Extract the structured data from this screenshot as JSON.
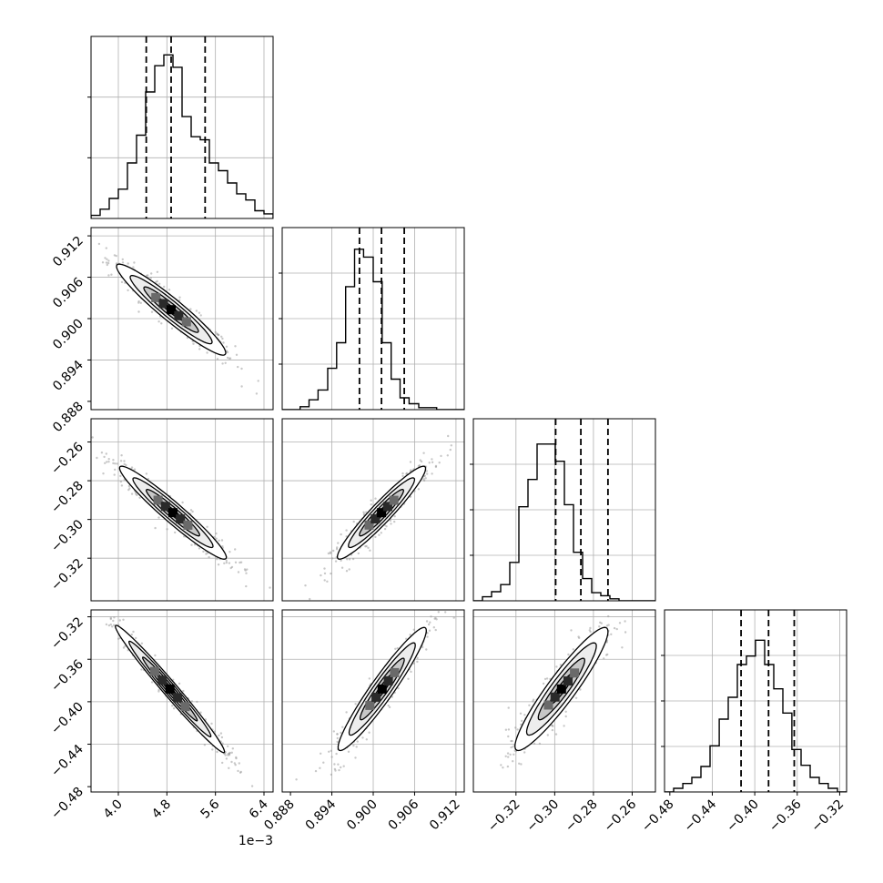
{
  "chart_data": {
    "type": "corner",
    "parameters": [
      {
        "range": [
          3.55,
          6.55
        ],
        "ticks": [
          4.0,
          4.8,
          5.6,
          6.4
        ],
        "tick_labels": [
          "4.0",
          "4.8",
          "5.6",
          "6.4"
        ],
        "offset_label": "1e−3",
        "quantiles": [
          4.46,
          4.87,
          5.43
        ],
        "grid": [
          4.0,
          4.8,
          5.6,
          6.4
        ],
        "hist_grid": [
          1,
          2
        ],
        "hist": {
          "edges": [
            3.55,
            3.7,
            3.85,
            4.0,
            4.15,
            4.3,
            4.45,
            4.6,
            4.75,
            4.9,
            5.05,
            5.2,
            5.35,
            5.5,
            5.65,
            5.8,
            5.95,
            6.1,
            6.25,
            6.4,
            6.55
          ],
          "counts": [
            0.02,
            0.06,
            0.13,
            0.19,
            0.36,
            0.54,
            0.82,
            0.99,
            1.06,
            0.98,
            0.66,
            0.53,
            0.51,
            0.36,
            0.31,
            0.23,
            0.16,
            0.12,
            0.05,
            0.03
          ],
          "max": 1.18
        }
      },
      {
        "range": [
          0.8868,
          0.9132
        ],
        "ticks": [
          0.888,
          0.894,
          0.9,
          0.906,
          0.912
        ],
        "tick_labels": [
          "0.888",
          "0.894",
          "0.900",
          "0.906",
          "0.912"
        ],
        "quantiles": [
          0.898,
          0.9012,
          0.9045
        ],
        "grid": [
          0.894,
          0.9,
          0.906,
          0.912
        ],
        "hist_grid": [
          1,
          2,
          3
        ],
        "hist": {
          "edges": [
            0.8868,
            0.8881,
            0.8894,
            0.8907,
            0.892,
            0.8934,
            0.8947,
            0.896,
            0.8973,
            0.8986,
            0.9,
            0.9013,
            0.9026,
            0.9039,
            0.9052,
            0.9066,
            0.9079,
            0.9092,
            0.9105,
            0.9118,
            0.9132
          ],
          "counts": [
            0.0,
            0.0,
            0.03,
            0.1,
            0.2,
            0.42,
            0.68,
            1.25,
            1.63,
            1.55,
            1.3,
            0.68,
            0.31,
            0.12,
            0.06,
            0.02,
            0.02,
            0.0,
            0.0,
            0.0
          ],
          "max": 1.85
        }
      },
      {
        "range": [
          -0.342,
          -0.248
        ],
        "ticks": [
          -0.32,
          -0.3,
          -0.28,
          -0.26
        ],
        "tick_labels": [
          "−0.32",
          "−0.30",
          "−0.28",
          "−0.26"
        ],
        "quantiles": [
          -0.2995,
          -0.2865,
          -0.2725
        ],
        "grid": [
          -0.32,
          -0.3,
          -0.28,
          -0.26
        ],
        "hist_grid": [
          1,
          2,
          3
        ],
        "hist": {
          "edges": [
            -0.342,
            -0.3373,
            -0.3326,
            -0.3279,
            -0.3232,
            -0.3185,
            -0.3138,
            -0.3091,
            -0.3044,
            -0.2997,
            -0.295,
            -0.2903,
            -0.2856,
            -0.2809,
            -0.2762,
            -0.2715,
            -0.2668,
            -0.2621,
            -0.2574,
            -0.2527,
            -0.248
          ],
          "counts": [
            0.0,
            0.04,
            0.09,
            0.16,
            0.38,
            0.93,
            1.2,
            1.55,
            1.55,
            1.38,
            0.95,
            0.48,
            0.22,
            0.08,
            0.05,
            0.02,
            0.0,
            0.0,
            0.0,
            0.0
          ],
          "max": 1.8
        }
      },
      {
        "range": [
          -0.485,
          -0.3135
        ],
        "ticks": [
          -0.48,
          -0.44,
          -0.4,
          -0.36,
          -0.32
        ],
        "tick_labels": [
          "−0.48",
          "−0.44",
          "−0.40",
          "−0.36",
          "−0.32"
        ],
        "quantiles": [
          -0.4129,
          -0.387,
          -0.3628
        ],
        "grid": [
          -0.44,
          -0.4,
          -0.36,
          -0.32
        ],
        "hist_grid": [
          1,
          2,
          3
        ],
        "hist": {
          "edges": [
            -0.485,
            -0.4764,
            -0.4678,
            -0.4593,
            -0.4507,
            -0.4421,
            -0.4335,
            -0.425,
            -0.4164,
            -0.4078,
            -0.3993,
            -0.3907,
            -0.3821,
            -0.3735,
            -0.365,
            -0.3564,
            -0.3478,
            -0.3392,
            -0.3307,
            -0.3221,
            -0.3135
          ],
          "counts": [
            0.0,
            0.03,
            0.07,
            0.12,
            0.21,
            0.38,
            0.6,
            0.78,
            1.05,
            1.12,
            1.25,
            1.05,
            0.85,
            0.65,
            0.35,
            0.22,
            0.12,
            0.07,
            0.03,
            0.0
          ],
          "max": 1.5
        }
      }
    ],
    "correlations": [
      {
        "row": 1,
        "col": 0,
        "mean": [
          4.87,
          0.9013
        ],
        "sd": [
          0.45,
          0.0033
        ],
        "rho": -0.95
      },
      {
        "row": 2,
        "col": 0,
        "mean": [
          4.9,
          -0.2965
        ],
        "sd": [
          0.44,
          0.012
        ],
        "rho": -0.96
      },
      {
        "row": 2,
        "col": 1,
        "mean": [
          0.9012,
          -0.2965
        ],
        "sd": [
          0.0032,
          0.012
        ],
        "rho": 0.95
      },
      {
        "row": 3,
        "col": 0,
        "mean": [
          4.85,
          -0.388
        ],
        "sd": [
          0.45,
          0.03
        ],
        "rho": -0.985
      },
      {
        "row": 3,
        "col": 1,
        "mean": [
          0.9013,
          -0.388
        ],
        "sd": [
          0.0032,
          0.029
        ],
        "rho": 0.95
      },
      {
        "row": 3,
        "col": 2,
        "mean": [
          -0.2965,
          -0.388
        ],
        "sd": [
          0.012,
          0.029
        ],
        "rho": 0.93
      }
    ],
    "contour_levels_sigma": [
      0.5,
      1.0,
      1.5,
      2.0
    ],
    "contour_fill_grays": [
      "#ffffff",
      "#ededed",
      "#c7c7c7",
      "#8a8a8a"
    ],
    "scatter_color": "#9a9a9a",
    "line_color": "#000000",
    "grid": true
  }
}
